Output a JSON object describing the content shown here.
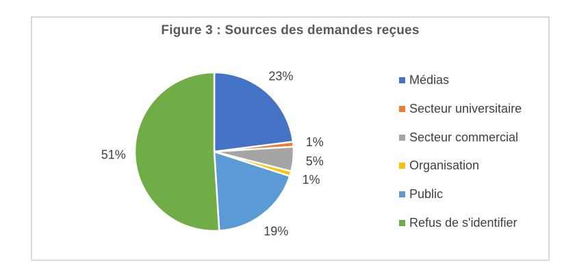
{
  "chart_data": {
    "type": "pie",
    "title": "Figure 3 : Sources des demandes reçues",
    "direction": "clockwise",
    "start_angle_deg": 0,
    "legend_position": "right",
    "data_label_position": "outside",
    "categories": [
      "Médias",
      "Secteur universitaire",
      "Secteur commercial",
      "Organisation",
      "Public",
      "Refus de s'identifier"
    ],
    "values": [
      23,
      1,
      5,
      1,
      19,
      51
    ],
    "data_labels": [
      "23%",
      "1%",
      "5%",
      "1%",
      "19%",
      "51%"
    ],
    "series": [
      {
        "label": "Médias",
        "value": 23,
        "data_label": "23%",
        "color": "#4472C4"
      },
      {
        "label": "Secteur universitaire",
        "value": 1,
        "data_label": "1%",
        "color": "#ED7D31"
      },
      {
        "label": "Secteur commercial",
        "value": 5,
        "data_label": "5%",
        "color": "#A5A5A5"
      },
      {
        "label": "Organisation",
        "value": 1,
        "data_label": "1%",
        "color": "#FFC000"
      },
      {
        "label": "Public",
        "value": 19,
        "data_label": "19%",
        "color": "#5B9BD5"
      },
      {
        "label": "Refus de s'identifier",
        "value": 51,
        "data_label": "51%",
        "color": "#70AD47"
      }
    ]
  },
  "style": {
    "frame_border_color": "#D9D9D9",
    "background_color": "#FFFFFF",
    "title_color": "#595959",
    "label_color": "#404040",
    "slice_separator_color": "#FFFFFF"
  }
}
